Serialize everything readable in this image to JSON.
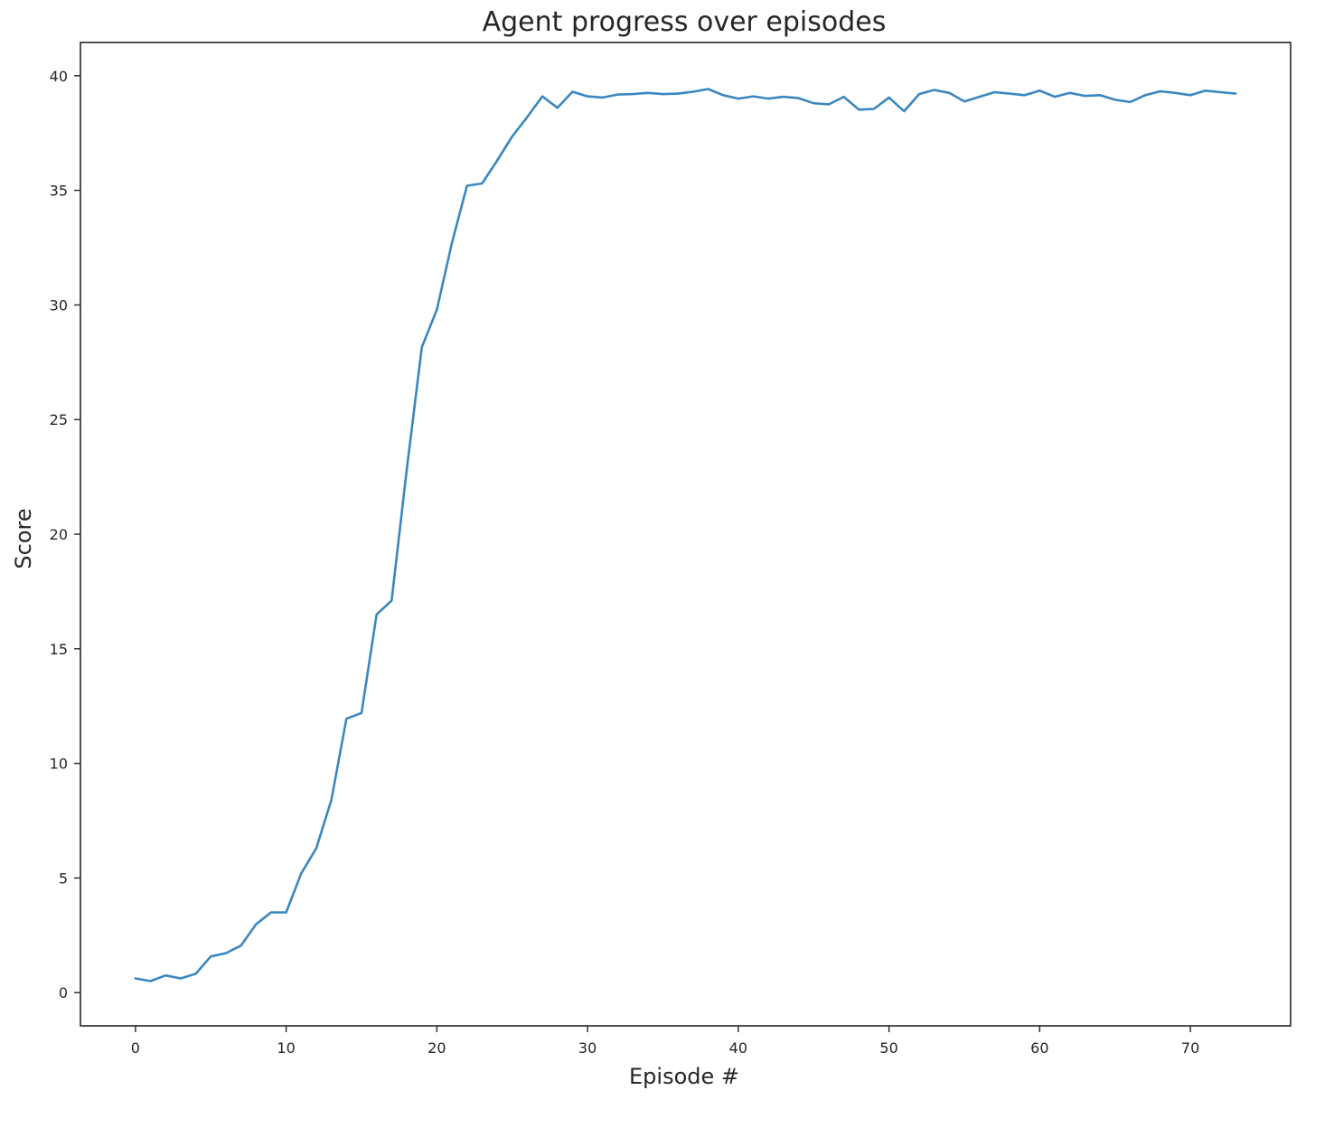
{
  "chart_data": {
    "type": "line",
    "title": "Agent progress over episodes",
    "xlabel": "Episode #",
    "ylabel": "Score",
    "xlim": [
      -3.65,
      76.65
    ],
    "ylim": [
      -1.45,
      41.45
    ],
    "xticks": [
      0,
      10,
      20,
      30,
      40,
      50,
      60,
      70
    ],
    "yticks": [
      0,
      5,
      10,
      15,
      20,
      25,
      30,
      35,
      40
    ],
    "grid": false,
    "line_color": "#3a87c0",
    "series": [
      {
        "values": [
          0.62,
          0.5,
          0.75,
          0.62,
          0.82,
          1.58,
          1.72,
          2.05,
          2.98,
          3.5,
          3.5,
          5.2,
          6.3,
          8.4,
          11.95,
          12.2,
          16.5,
          17.1,
          22.8,
          28.15,
          29.8,
          32.7,
          35.2,
          35.3,
          36.3,
          37.35,
          38.2,
          39.1,
          38.6,
          39.3,
          39.1,
          39.05,
          39.18,
          39.2,
          39.25,
          39.2,
          39.22,
          39.3,
          39.42,
          39.15,
          39.0,
          39.1,
          39.0,
          39.08,
          39.02,
          38.8,
          38.75,
          39.08,
          38.52,
          38.55,
          39.05,
          38.45,
          39.2,
          39.38,
          39.25,
          38.88,
          39.08,
          39.28,
          39.22,
          39.15,
          39.35,
          39.08,
          39.25,
          39.12,
          39.15,
          38.95,
          38.85,
          39.15,
          39.32,
          39.25,
          39.15,
          39.35,
          39.28,
          39.22
        ]
      }
    ]
  }
}
